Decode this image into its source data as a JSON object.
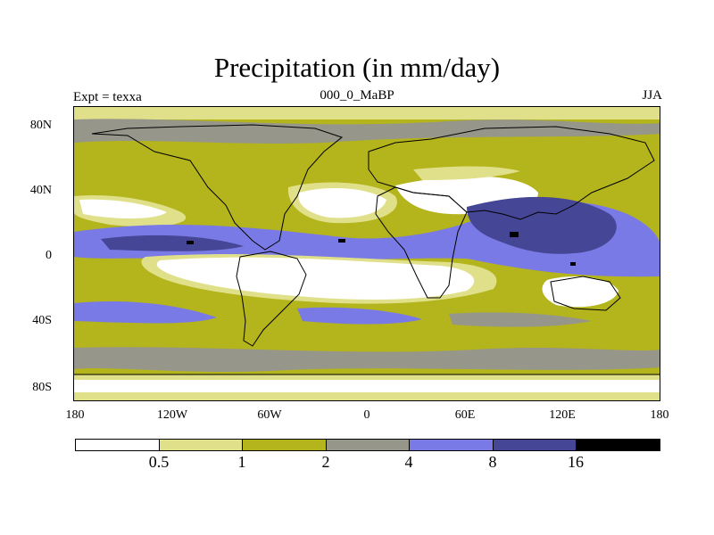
{
  "title": "Precipitation (in mm/day)",
  "subtitle_left": "Expt = texxa",
  "subtitle_center": "000_0_MaBP",
  "subtitle_right": "JJA",
  "y_ticks": [
    "80N",
    "40N",
    "0",
    "40S",
    "80S"
  ],
  "x_ticks": [
    "180",
    "120W",
    "60W",
    "0",
    "60E",
    "120E",
    "180"
  ],
  "colorbar": {
    "labels": [
      "0.5",
      "1",
      "2",
      "4",
      "8",
      "16"
    ],
    "colors": [
      "#ffffff",
      "#e0e08a",
      "#b4b41c",
      "#96968a",
      "#7a7ae6",
      "#464696",
      "#000000"
    ]
  }
}
